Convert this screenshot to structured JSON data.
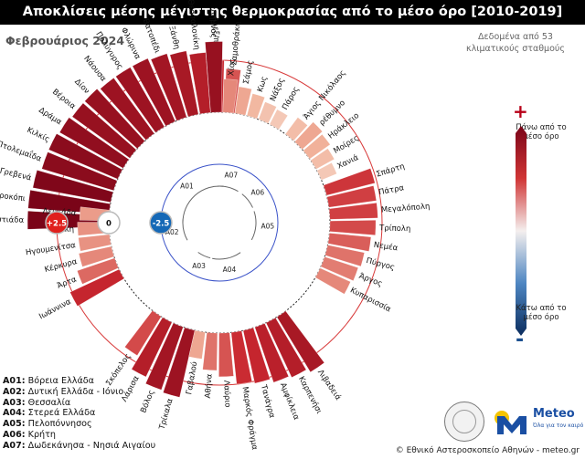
{
  "title": "Αποκλίσεις μέσης μέγιστης θερμοκρασίας από το μέσο όρο [2010-2019]",
  "subtitle": "Φεβρουάριος 2024",
  "source_note": "Δεδομένα από 53 κλιματικούς σταθμούς",
  "scale": {
    "plus": "+",
    "minus": "-",
    "top_label": "Πάνω από το μέσο όρο",
    "bottom_label": "Κάτω από το μέσο όρο"
  },
  "region_legend": [
    {
      "code": "A01:",
      "name": "Βόρεια Ελλάδα"
    },
    {
      "code": "A02:",
      "name": "Δυτική Ελλάδα - Ιόνιο"
    },
    {
      "code": "A03:",
      "name": "Θεσσαλία"
    },
    {
      "code": "A04:",
      "name": "Στερεά Ελλάδα"
    },
    {
      "code": "A05:",
      "name": "Πελοπόννησος"
    },
    {
      "code": "A06:",
      "name": "Κρήτη"
    },
    {
      "code": "A07:",
      "name": "Δωδεκάνησα - Νησιά Αιγαίου"
    }
  ],
  "credit": "© Εθνικό Αστεροσκοπείο Αθηνών - meteo.gr",
  "logo": {
    "name": "Meteo",
    "tagline": "Όλα για τον καιρό"
  },
  "colors": {
    "warm_max": "#7a0418",
    "warm_mid": "#c9272f",
    "neutral": "#f7f2ee",
    "cool_max": "#0b3d7a",
    "ring": "#d83a3a",
    "inner_ring": "#3a52c8"
  },
  "chart_data": {
    "type": "radial bar",
    "value_ticks": [
      {
        "label": "+2.5",
        "value": 2.5,
        "color": "#e0201d"
      },
      {
        "label": "0",
        "value": 0,
        "color": "#ffffff"
      },
      {
        "label": "-2.5",
        "value": -2.5,
        "color": "#1568b6"
      }
    ],
    "ylim": [
      -2.5,
      2.5
    ],
    "group_labels": [
      "A01",
      "A02",
      "A03",
      "A04",
      "A05",
      "A06",
      "A07"
    ],
    "groups": [
      {
        "code": "A01",
        "stations": [
          {
            "name": "Ορεστιάδα",
            "value": 3.9
          },
          {
            "name": "Νευροκόπι",
            "value": 3.9
          },
          {
            "name": "Γρεβενά",
            "value": 3.8
          },
          {
            "name": "Πτολεμαΐδα",
            "value": 3.6
          },
          {
            "name": "Κιλκίς",
            "value": 3.6
          },
          {
            "name": "Δράμα",
            "value": 3.5
          },
          {
            "name": "Βέροια",
            "value": 3.4
          },
          {
            "name": "Δίον",
            "value": 3.4
          },
          {
            "name": "Νάουσα",
            "value": 3.3
          },
          {
            "name": "Πολύγυρος",
            "value": 3.3
          },
          {
            "name": "Φλώρινα",
            "value": 3.3
          },
          {
            "name": "Βατοπέδι",
            "value": 3.2
          },
          {
            "name": "Ξάνθη",
            "value": 3.1
          },
          {
            "name": "Θεσσαλονίκη",
            "value": 2.9
          },
          {
            "name": "Αλεξ/πολη",
            "value": 2.5
          },
          {
            "name": "Σαμοθράκη",
            "value": 2.1
          }
        ]
      },
      {
        "code": "A02",
        "stations": [
          {
            "name": "Ιωάννινα",
            "value": 2.6
          },
          {
            "name": "Άρτα",
            "value": 1.9
          },
          {
            "name": "Κέρκυρα",
            "value": 1.6
          },
          {
            "name": "Ηγουμενίτσα",
            "value": 1.5
          },
          {
            "name": "Ιθάκη",
            "value": 1.5
          },
          {
            "name": "Λευκάδα",
            "value": 1.4
          }
        ]
      },
      {
        "code": "A03",
        "stations": [
          {
            "name": "Τρίκαλα",
            "value": 3.3
          },
          {
            "name": "Βόλος",
            "value": 3.2
          },
          {
            "name": "Λάρισα",
            "value": 2.9
          },
          {
            "name": "Σκόπελος",
            "value": 2.2
          }
        ]
      },
      {
        "code": "A04",
        "stations": [
          {
            "name": "Λιβαδειά",
            "value": 3.1
          },
          {
            "name": "Καρπενήσι",
            "value": 2.9
          },
          {
            "name": "Αμφίκλεια",
            "value": 2.8
          },
          {
            "name": "Τανάγρα",
            "value": 2.6
          },
          {
            "name": "Μαρκός Φράγμα",
            "value": 2.5
          },
          {
            "name": "Λαύριο",
            "value": 2.1
          },
          {
            "name": "Αθήνα",
            "value": 1.8
          },
          {
            "name": "Γαβαλού",
            "value": 1.3
          }
        ]
      },
      {
        "code": "A05",
        "stations": [
          {
            "name": "Σπάρτη",
            "value": 2.4
          },
          {
            "name": "Πάτρα",
            "value": 2.3
          },
          {
            "name": "Μεγαλόπολη",
            "value": 2.3
          },
          {
            "name": "Τρίπολη",
            "value": 2.2
          },
          {
            "name": "Νεμέα",
            "value": 2.0
          },
          {
            "name": "Πύργος",
            "value": 1.8
          },
          {
            "name": "Άργος",
            "value": 1.7
          },
          {
            "name": "Κυπαρισσία",
            "value": 1.6
          }
        ]
      },
      {
        "code": "A06",
        "stations": [
          {
            "name": "Άγιος Νικόλαος",
            "value": 1.0
          },
          {
            "name": "ρέθυμνο",
            "value": 1.3
          },
          {
            "name": "Ηράκλειο",
            "value": 1.2
          },
          {
            "name": "Μοίρες",
            "value": 1.0
          },
          {
            "name": "Χανιά",
            "value": 0.8
          }
        ]
      },
      {
        "code": "A07",
        "stations": [
          {
            "name": "Λήμνος",
            "value": 3.4
          },
          {
            "name": "Χίος",
            "value": 1.6
          },
          {
            "name": "Σάμος",
            "value": 1.3
          },
          {
            "name": "Κως",
            "value": 1.1
          },
          {
            "name": "Νάξος",
            "value": 0.9
          },
          {
            "name": "Πάρος",
            "value": 0.8
          }
        ]
      }
    ]
  }
}
